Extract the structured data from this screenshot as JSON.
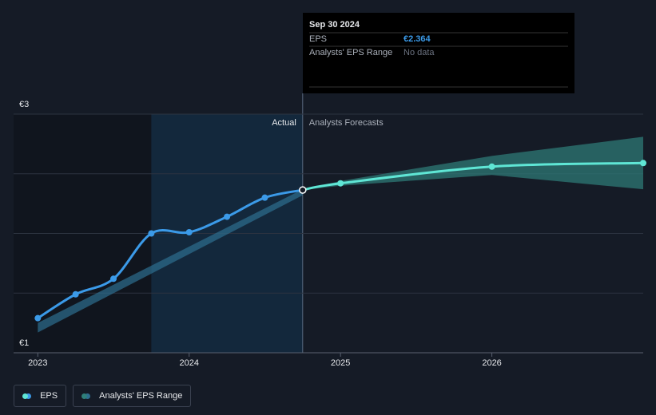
{
  "chart_data": {
    "type": "line",
    "xlim": [
      2022.84,
      2027
    ],
    "xticks": [
      2023,
      2024,
      2025,
      2026
    ],
    "ylim": [
      1,
      3
    ],
    "yticks": [
      {
        "value": 1,
        "label": "€1"
      },
      {
        "value": 1.5,
        "label": null
      },
      {
        "value": 2,
        "label": null
      },
      {
        "value": 2.5,
        "label": null
      },
      {
        "value": 3,
        "label": "€3"
      }
    ],
    "grid": true,
    "actual_label": "Actual",
    "forecast_label": "Analysts Forecasts",
    "actual_start": 2023.75,
    "actual_end": 2024.75,
    "series": [
      {
        "name": "EPS",
        "color": "#3b9ae8",
        "x": [
          2023,
          2023.25,
          2023.5,
          2023.75,
          2024,
          2024.25,
          2024.5,
          2024.75
        ],
        "values": [
          1.29,
          1.49,
          1.62,
          2.0,
          2.01,
          2.14,
          2.3,
          2.364
        ]
      }
    ],
    "forecast": {
      "color": "#5fe6d5",
      "x": [
        2024.75,
        2025,
        2026,
        2027
      ],
      "values": [
        2.364,
        2.42,
        2.56,
        2.59
      ]
    },
    "ranges": [
      {
        "name": "Analysts' EPS Range",
        "color": "#2d6e8f",
        "x": [
          2023,
          2024.75
        ],
        "low": [
          1.17,
          2.32
        ],
        "high": [
          1.25,
          2.37
        ]
      },
      {
        "color": "#2f7f7a",
        "x": [
          2024.75,
          2025,
          2026,
          2027
        ],
        "low": [
          2.364,
          2.4,
          2.49,
          2.37
        ],
        "high": [
          2.364,
          2.44,
          2.65,
          2.81
        ]
      }
    ],
    "tooltip": {
      "date": "Sep 30 2024",
      "rows": [
        {
          "label": "EPS",
          "value_label": "€2.364"
        },
        {
          "label": "Analysts' EPS Range",
          "value_label": "No data"
        }
      ]
    }
  }
}
